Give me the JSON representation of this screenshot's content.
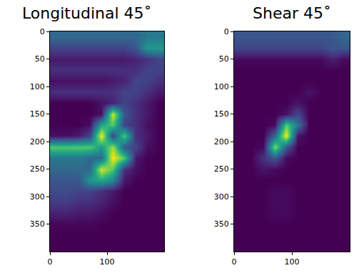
{
  "chart_data": [
    {
      "type": "heatmap",
      "title": "Longitudinal 45˚",
      "color": "Viridis",
      "x": [
        10,
        30,
        50,
        70,
        90,
        110,
        130,
        150,
        170,
        190
      ],
      "y": [
        10,
        30,
        50,
        70,
        90,
        110,
        130,
        150,
        170,
        190,
        210,
        230,
        250,
        270,
        290,
        310,
        330,
        350,
        370,
        390
      ],
      "cells": [
        [
          0.3,
          0.3,
          0.3,
          0.3,
          0.3,
          0.3,
          0.3,
          0.3,
          0.35,
          0.35
        ],
        [
          0.2,
          0.2,
          0.2,
          0.2,
          0.2,
          0.2,
          0.2,
          0.25,
          0.45,
          0.45
        ],
        [
          0.1,
          0.1,
          0.1,
          0.1,
          0.1,
          0.1,
          0.1,
          0.12,
          0.15,
          0.2
        ],
        [
          0.15,
          0.15,
          0.15,
          0.15,
          0.15,
          0.15,
          0.15,
          0.15,
          0.2,
          0.2
        ],
        [
          0.08,
          0.08,
          0.08,
          0.08,
          0.08,
          0.1,
          0.12,
          0.2,
          0.2,
          0.15
        ],
        [
          0.15,
          0.15,
          0.15,
          0.15,
          0.15,
          0.15,
          0.2,
          0.2,
          0.15,
          0.1
        ],
        [
          0.05,
          0.05,
          0.05,
          0.05,
          0.08,
          0.12,
          0.2,
          0.15,
          0.1,
          0.05
        ],
        [
          0.05,
          0.05,
          0.05,
          0.05,
          0.08,
          0.75,
          0.25,
          0.15,
          0.1,
          0.05
        ],
        [
          0.05,
          0.05,
          0.05,
          0.08,
          0.5,
          0.6,
          0.2,
          0.15,
          0.08,
          0.05
        ],
        [
          0.08,
          0.08,
          0.1,
          0.2,
          0.8,
          0.2,
          0.6,
          0.15,
          0.1,
          0.05
        ],
        [
          0.6,
          0.6,
          0.6,
          0.6,
          0.45,
          0.7,
          0.25,
          0.2,
          0.08,
          0.05
        ],
        [
          0.35,
          0.35,
          0.35,
          0.3,
          0.3,
          0.8,
          0.6,
          0.1,
          0.05,
          0.05
        ],
        [
          0.3,
          0.3,
          0.3,
          0.3,
          0.75,
          0.6,
          0.15,
          0.08,
          0.05,
          0.05
        ],
        [
          0.25,
          0.25,
          0.25,
          0.45,
          0.5,
          0.4,
          0.1,
          0.05,
          0.05,
          0.05
        ],
        [
          0.22,
          0.22,
          0.2,
          0.2,
          0.15,
          0.1,
          0.05,
          0.05,
          0.05,
          0.05
        ],
        [
          0.18,
          0.18,
          0.15,
          0.15,
          0.12,
          0.08,
          0.05,
          0.05,
          0.05,
          0.05
        ],
        [
          0.12,
          0.12,
          0.1,
          0.1,
          0.08,
          0.05,
          0.05,
          0.05,
          0.05,
          0.05
        ],
        [
          0.06,
          0.06,
          0.06,
          0.06,
          0.05,
          0.05,
          0.05,
          0.05,
          0.05,
          0.05
        ],
        [
          0.05,
          0.05,
          0.05,
          0.05,
          0.05,
          0.05,
          0.05,
          0.05,
          0.05,
          0.05
        ],
        [
          0.05,
          0.05,
          0.05,
          0.05,
          0.05,
          0.05,
          0.05,
          0.05,
          0.05,
          0.05
        ]
      ],
      "xlim": [
        0,
        200
      ],
      "ylim": [
        400,
        0
      ],
      "xticks": [
        0,
        100
      ],
      "yticks": [
        0,
        50,
        100,
        150,
        200,
        250,
        300,
        350
      ]
    },
    {
      "type": "heatmap",
      "title": "Shear 45˚",
      "color": "Viridis",
      "x": [
        10,
        30,
        50,
        70,
        90,
        110,
        130,
        150,
        170,
        190
      ],
      "y": [
        10,
        30,
        50,
        70,
        90,
        110,
        130,
        150,
        170,
        190,
        210,
        230,
        250,
        270,
        290,
        310,
        330,
        350,
        370,
        390
      ],
      "cells": [
        [
          0.3,
          0.3,
          0.3,
          0.3,
          0.3,
          0.3,
          0.3,
          0.3,
          0.3,
          0.35
        ],
        [
          0.25,
          0.25,
          0.25,
          0.25,
          0.25,
          0.25,
          0.25,
          0.25,
          0.3,
          0.3
        ],
        [
          0.1,
          0.1,
          0.1,
          0.1,
          0.1,
          0.1,
          0.1,
          0.1,
          0.15,
          0.1
        ],
        [
          0.08,
          0.08,
          0.08,
          0.08,
          0.08,
          0.08,
          0.08,
          0.08,
          0.08,
          0.08
        ],
        [
          0.08,
          0.08,
          0.08,
          0.08,
          0.08,
          0.08,
          0.08,
          0.08,
          0.08,
          0.08
        ],
        [
          0.08,
          0.08,
          0.08,
          0.08,
          0.08,
          0.08,
          0.12,
          0.08,
          0.08,
          0.08
        ],
        [
          0.08,
          0.08,
          0.08,
          0.08,
          0.08,
          0.12,
          0.08,
          0.08,
          0.08,
          0.08
        ],
        [
          0.08,
          0.08,
          0.08,
          0.08,
          0.12,
          0.25,
          0.08,
          0.08,
          0.08,
          0.08
        ],
        [
          0.08,
          0.08,
          0.08,
          0.1,
          0.7,
          0.4,
          0.08,
          0.08,
          0.08,
          0.08
        ],
        [
          0.08,
          0.08,
          0.08,
          0.35,
          0.9,
          0.12,
          0.08,
          0.08,
          0.08,
          0.08
        ],
        [
          0.08,
          0.08,
          0.1,
          0.75,
          0.3,
          0.08,
          0.08,
          0.08,
          0.08,
          0.08
        ],
        [
          0.08,
          0.08,
          0.2,
          0.3,
          0.1,
          0.08,
          0.08,
          0.08,
          0.08,
          0.08
        ],
        [
          0.08,
          0.08,
          0.12,
          0.1,
          0.08,
          0.08,
          0.08,
          0.08,
          0.08,
          0.08
        ],
        [
          0.08,
          0.08,
          0.08,
          0.08,
          0.08,
          0.08,
          0.08,
          0.08,
          0.08,
          0.08
        ],
        [
          0.08,
          0.08,
          0.08,
          0.1,
          0.1,
          0.08,
          0.08,
          0.08,
          0.08,
          0.08
        ],
        [
          0.08,
          0.08,
          0.08,
          0.1,
          0.1,
          0.08,
          0.08,
          0.08,
          0.08,
          0.08
        ],
        [
          0.08,
          0.08,
          0.08,
          0.1,
          0.1,
          0.08,
          0.08,
          0.08,
          0.08,
          0.08
        ],
        [
          0.08,
          0.08,
          0.08,
          0.08,
          0.08,
          0.08,
          0.08,
          0.08,
          0.08,
          0.08
        ],
        [
          0.08,
          0.08,
          0.08,
          0.08,
          0.08,
          0.08,
          0.08,
          0.08,
          0.08,
          0.08
        ],
        [
          0.08,
          0.08,
          0.08,
          0.08,
          0.08,
          0.08,
          0.08,
          0.08,
          0.08,
          0.08
        ]
      ],
      "xlim": [
        0,
        200
      ],
      "ylim": [
        400,
        0
      ],
      "xticks": [
        0,
        100
      ],
      "yticks": [
        0,
        50,
        100,
        150,
        200,
        250,
        300,
        350
      ]
    }
  ]
}
